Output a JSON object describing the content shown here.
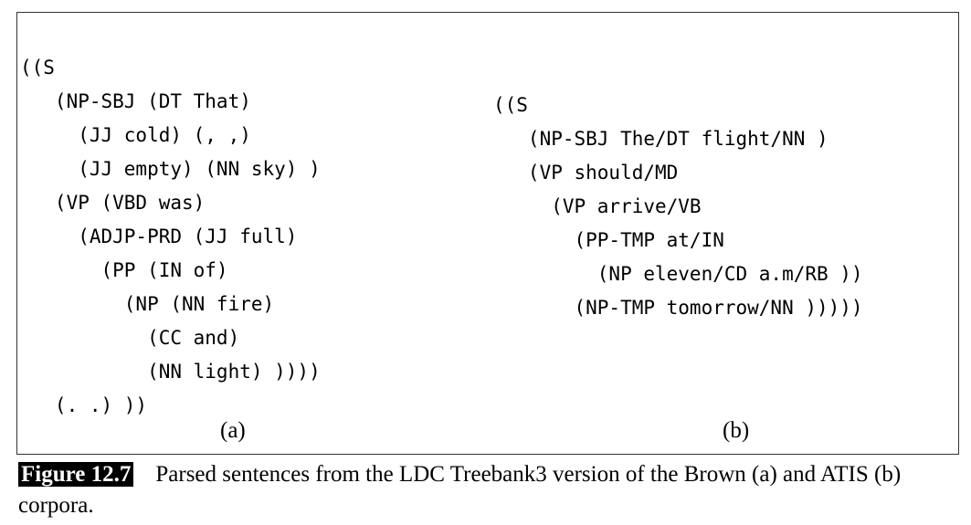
{
  "figure": {
    "tree_a_lines": [
      "((S",
      "   (NP-SBJ (DT That)",
      "     (JJ cold) (, ,)",
      "     (JJ empty) (NN sky) )",
      "   (VP (VBD was)",
      "     (ADJP-PRD (JJ full)",
      "       (PP (IN of)",
      "         (NP (NN fire)",
      "           (CC and)",
      "           (NN light) ))))",
      "   (. .) ))"
    ],
    "tree_b_lines": [
      "((S",
      "   (NP-SBJ The/DT flight/NN )",
      "   (VP should/MD",
      "     (VP arrive/VB",
      "       (PP-TMP at/IN",
      "         (NP eleven/CD a.m/RB ))",
      "       (NP-TMP tomorrow/NN )))))"
    ],
    "label_a": "(a)",
    "label_b": "(b)"
  },
  "caption": {
    "figure_number": "Figure 12.7",
    "text": "Parsed sentences from the LDC Treebank3 version of the Brown (a) and ATIS (b) corpora."
  }
}
